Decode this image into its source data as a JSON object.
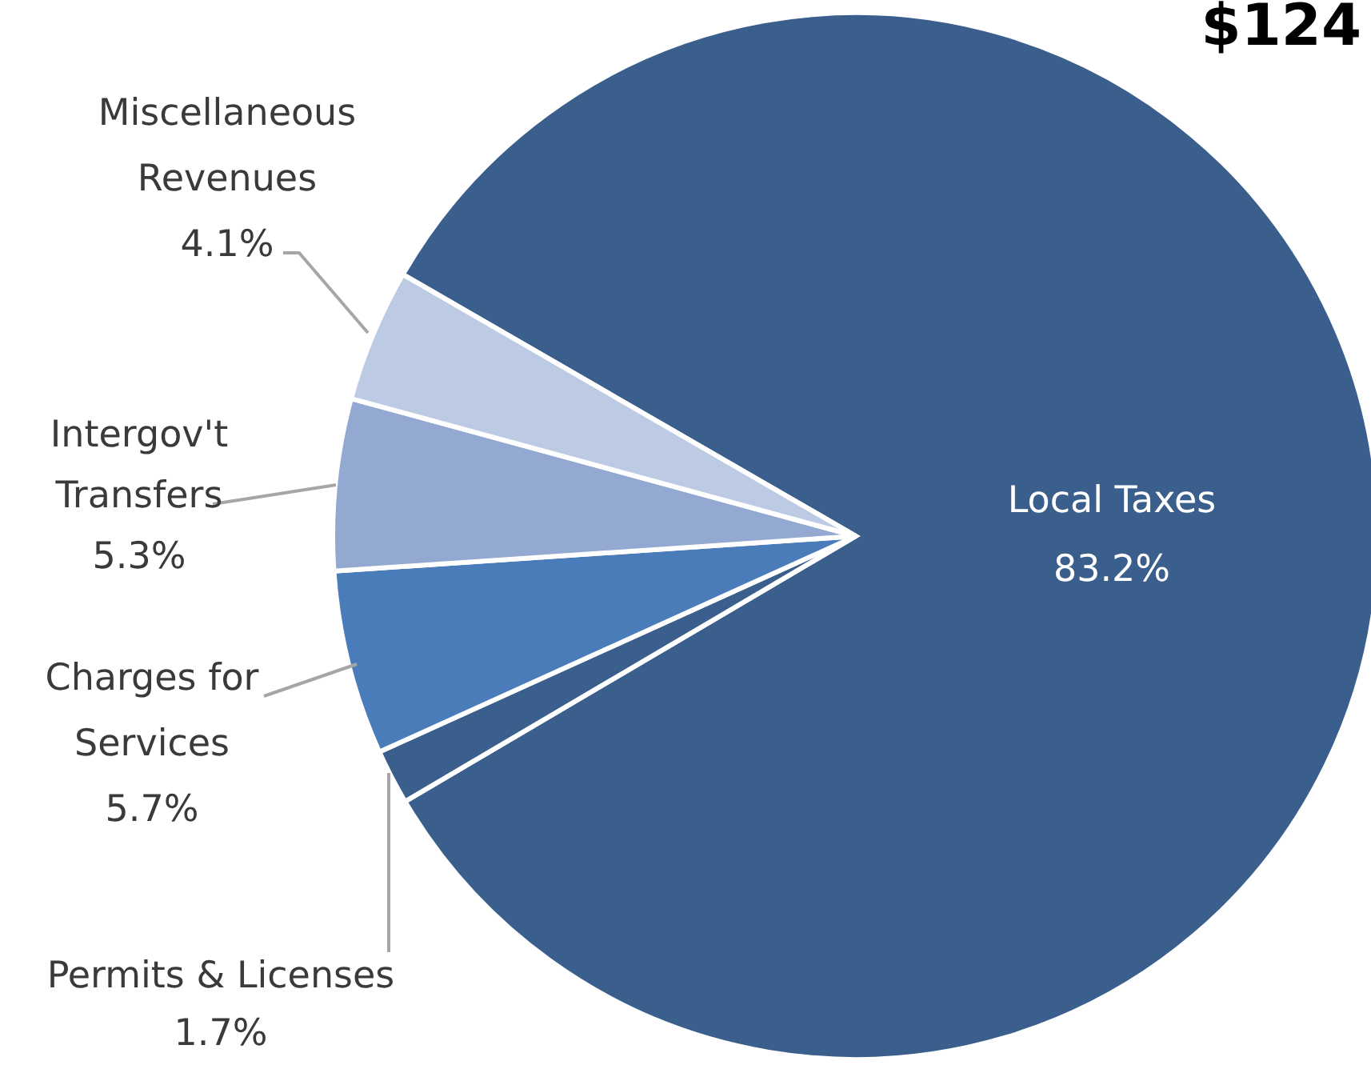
{
  "chart_data": {
    "type": "pie",
    "title": "$124",
    "categories": [
      "Local Taxes",
      "Permits & Licenses",
      "Charges for Services",
      "Intergov't Transfers",
      "Miscellaneous Revenues"
    ],
    "values": [
      83.2,
      1.7,
      5.7,
      5.3,
      4.1
    ],
    "value_labels": [
      "83.2%",
      "1.7%",
      "5.7%",
      "5.3%",
      "4.1%"
    ],
    "colors": [
      "#3b5f8d",
      "#3b5f8d",
      "#4a7cb9",
      "#93a9d2",
      "#bccae3"
    ],
    "legend": false
  }
}
